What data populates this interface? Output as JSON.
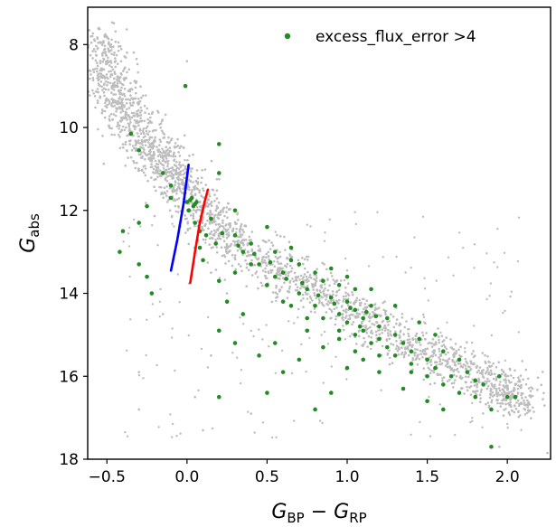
{
  "chart_data": {
    "type": "scatter",
    "title": "",
    "xlabel": {
      "main": "G",
      "sub1": "BP",
      "minus": " − ",
      "main2": "G",
      "sub2": "RP"
    },
    "ylabel": {
      "main": "G",
      "sub": "abs"
    },
    "xlim": [
      -0.62,
      2.27
    ],
    "ylim": [
      18,
      7.1
    ],
    "y_inverted": true,
    "xticks": [
      -0.5,
      0.0,
      0.5,
      1.0,
      1.5,
      2.0
    ],
    "xtick_labels": [
      "−0.5",
      "0.0",
      "0.5",
      "1.0",
      "1.5",
      "2.0"
    ],
    "yticks": [
      8,
      10,
      12,
      14,
      16,
      18
    ],
    "ytick_labels": [
      "8",
      "10",
      "12",
      "14",
      "16",
      "18"
    ],
    "grid": false,
    "legend": {
      "placement": "top-right",
      "entries": [
        {
          "label": "excess_flux_error >4",
          "color": "#228b22"
        }
      ]
    },
    "background_population": {
      "color": "#bdbdbd",
      "sequence_points": [
        [
          -0.55,
          7.7
        ],
        [
          -0.5,
          8.6
        ],
        [
          -0.45,
          9.1
        ],
        [
          -0.4,
          9.6
        ],
        [
          -0.3,
          10.1
        ],
        [
          -0.2,
          10.6
        ],
        [
          -0.1,
          11.0
        ],
        [
          0.0,
          11.6
        ],
        [
          0.1,
          12.1
        ],
        [
          0.2,
          12.5
        ],
        [
          0.4,
          13.0
        ],
        [
          0.6,
          13.5
        ],
        [
          0.8,
          13.9
        ],
        [
          1.0,
          14.4
        ],
        [
          1.2,
          14.8
        ],
        [
          1.4,
          15.2
        ],
        [
          1.6,
          15.6
        ],
        [
          1.8,
          16.0
        ],
        [
          2.0,
          16.4
        ],
        [
          2.1,
          16.7
        ]
      ],
      "sequence_width": 0.55,
      "outlier_points": [
        [
          -0.55,
          7.6
        ],
        [
          -0.5,
          8.4
        ],
        [
          0.0,
          8.4
        ],
        [
          0.05,
          16.5
        ],
        [
          -0.3,
          16.8
        ],
        [
          0.1,
          17.3
        ],
        [
          0.4,
          16.9
        ],
        [
          0.15,
          15.5
        ],
        [
          -0.15,
          14.5
        ],
        [
          -0.3,
          15.9
        ],
        [
          2.25,
          17.85
        ],
        [
          1.95,
          17.7
        ],
        [
          0.25,
          14.0
        ],
        [
          0.15,
          13.5
        ]
      ]
    },
    "series": [
      {
        "name": "excess_flux_error >4",
        "color": "#228b22",
        "type": "scatter",
        "points": [
          [
            -0.01,
            9.0
          ],
          [
            -0.35,
            10.15
          ],
          [
            -0.3,
            10.55
          ],
          [
            -0.15,
            11.1
          ],
          [
            -0.1,
            11.4
          ],
          [
            -0.1,
            11.7
          ],
          [
            -0.25,
            11.9
          ],
          [
            -0.3,
            12.3
          ],
          [
            -0.4,
            12.5
          ],
          [
            -0.42,
            13.0
          ],
          [
            -0.3,
            13.3
          ],
          [
            -0.25,
            13.6
          ],
          [
            -0.22,
            14.0
          ],
          [
            0.0,
            11.8
          ],
          [
            0.02,
            11.75
          ],
          [
            0.05,
            11.85
          ],
          [
            0.04,
            11.9
          ],
          [
            0.06,
            11.8
          ],
          [
            0.03,
            11.7
          ],
          [
            0.01,
            12.0
          ],
          [
            0.05,
            12.3
          ],
          [
            0.08,
            12.5
          ],
          [
            0.08,
            12.9
          ],
          [
            0.12,
            12.6
          ],
          [
            0.2,
            10.4
          ],
          [
            0.2,
            11.1
          ],
          [
            0.3,
            12.0
          ],
          [
            0.3,
            12.6
          ],
          [
            0.4,
            12.8
          ],
          [
            0.5,
            12.4
          ],
          [
            0.55,
            13.0
          ],
          [
            0.65,
            12.9
          ],
          [
            0.7,
            13.3
          ],
          [
            0.6,
            13.5
          ],
          [
            0.5,
            13.8
          ],
          [
            0.4,
            13.3
          ],
          [
            0.3,
            13.5
          ],
          [
            0.2,
            13.7
          ],
          [
            0.25,
            14.2
          ],
          [
            0.35,
            14.5
          ],
          [
            0.2,
            14.9
          ],
          [
            0.3,
            15.2
          ],
          [
            0.2,
            16.5
          ],
          [
            0.5,
            16.4
          ],
          [
            0.55,
            15.2
          ],
          [
            0.7,
            15.6
          ],
          [
            0.8,
            16.8
          ],
          [
            0.6,
            14.2
          ],
          [
            0.7,
            14.0
          ],
          [
            0.75,
            13.9
          ],
          [
            0.8,
            14.3
          ],
          [
            0.85,
            14.6
          ],
          [
            0.9,
            14.1
          ],
          [
            0.95,
            14.5
          ],
          [
            1.0,
            14.2
          ],
          [
            1.0,
            14.7
          ],
          [
            1.05,
            14.4
          ],
          [
            1.05,
            15.0
          ],
          [
            1.1,
            14.6
          ],
          [
            1.1,
            14.9
          ],
          [
            1.15,
            14.3
          ],
          [
            1.15,
            15.2
          ],
          [
            1.2,
            14.8
          ],
          [
            1.2,
            15.1
          ],
          [
            1.25,
            15.3
          ],
          [
            1.25,
            14.6
          ],
          [
            1.3,
            15.0
          ],
          [
            1.3,
            15.5
          ],
          [
            1.35,
            15.2
          ],
          [
            1.4,
            15.4
          ],
          [
            1.4,
            15.7
          ],
          [
            1.45,
            15.1
          ],
          [
            1.5,
            15.6
          ],
          [
            1.5,
            16.0
          ],
          [
            1.55,
            15.8
          ],
          [
            1.6,
            16.2
          ],
          [
            1.6,
            15.4
          ],
          [
            1.65,
            16.0
          ],
          [
            1.7,
            16.4
          ],
          [
            1.75,
            15.9
          ],
          [
            1.8,
            16.5
          ],
          [
            1.85,
            16.2
          ],
          [
            1.9,
            16.8
          ],
          [
            1.9,
            17.7
          ],
          [
            1.95,
            16.0
          ],
          [
            2.0,
            16.5
          ],
          [
            2.05,
            16.5
          ],
          [
            0.9,
            13.4
          ],
          [
            0.95,
            13.8
          ],
          [
            1.0,
            13.6
          ],
          [
            1.05,
            13.9
          ],
          [
            0.85,
            13.7
          ],
          [
            0.75,
            14.6
          ],
          [
            0.95,
            15.1
          ],
          [
            1.1,
            15.6
          ],
          [
            1.2,
            15.9
          ],
          [
            1.35,
            16.3
          ],
          [
            1.5,
            16.6
          ],
          [
            1.6,
            16.8
          ],
          [
            0.6,
            15.9
          ],
          [
            0.45,
            15.5
          ],
          [
            1.0,
            15.8
          ],
          [
            0.9,
            16.4
          ],
          [
            0.65,
            13.2
          ],
          [
            0.8,
            13.5
          ],
          [
            1.15,
            13.9
          ],
          [
            1.3,
            14.3
          ],
          [
            1.45,
            14.7
          ],
          [
            1.55,
            15.0
          ],
          [
            0.15,
            12.2
          ],
          [
            0.18,
            12.8
          ],
          [
            0.1,
            13.2
          ],
          [
            0.35,
            13.0
          ],
          [
            0.45,
            13.3
          ],
          [
            0.55,
            13.6
          ],
          [
            0.65,
            14.3
          ],
          [
            0.75,
            14.9
          ],
          [
            0.85,
            15.3
          ],
          [
            1.05,
            15.4
          ],
          [
            1.2,
            15.5
          ],
          [
            1.4,
            15.9
          ],
          [
            1.7,
            15.6
          ],
          [
            1.8,
            16.1
          ],
          [
            0.95,
            14.9
          ],
          [
            1.08,
            14.8
          ],
          [
            1.18,
            14.55
          ],
          [
            1.12,
            14.45
          ],
          [
            1.02,
            14.35
          ],
          [
            0.92,
            14.25
          ],
          [
            0.82,
            14.05
          ],
          [
            0.72,
            13.75
          ],
          [
            0.62,
            13.65
          ],
          [
            0.52,
            13.25
          ],
          [
            0.42,
            13.05
          ],
          [
            0.32,
            12.85
          ],
          [
            0.22,
            12.55
          ]
        ]
      },
      {
        "name": "",
        "color": "#0000ff",
        "type": "line",
        "points": [
          [
            -0.1,
            13.45
          ],
          [
            -0.06,
            12.7
          ],
          [
            -0.02,
            11.8
          ],
          [
            0.0,
            11.2
          ],
          [
            0.01,
            10.9
          ]
        ]
      },
      {
        "name": "",
        "color": "#ff0000",
        "type": "line",
        "points": [
          [
            0.02,
            13.75
          ],
          [
            0.05,
            13.0
          ],
          [
            0.08,
            12.3
          ],
          [
            0.11,
            11.8
          ],
          [
            0.13,
            11.5
          ]
        ]
      }
    ]
  }
}
